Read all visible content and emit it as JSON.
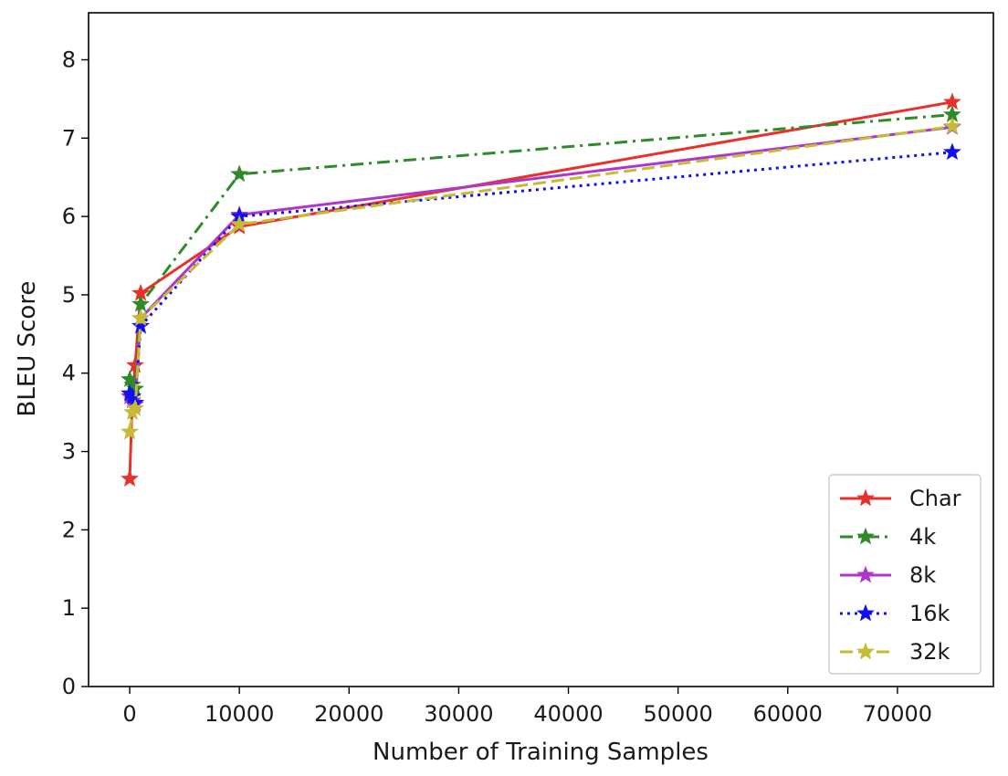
{
  "chart_data": {
    "type": "line",
    "title": "",
    "xlabel": "Number of Training Samples",
    "ylabel": "BLEU Score",
    "xlim": [
      -3750,
      78750
    ],
    "ylim": [
      0,
      8.6
    ],
    "xticks": [
      0,
      10000,
      20000,
      30000,
      40000,
      50000,
      60000,
      70000
    ],
    "yticks": [
      0,
      1,
      2,
      3,
      4,
      5,
      6,
      7,
      8
    ],
    "grid": false,
    "legend_position": "lower-right",
    "series": [
      {
        "name": "Char",
        "color": "#e8312b",
        "dash": "solid",
        "marker": "star",
        "points": [
          [
            0,
            2.65
          ],
          [
            250,
            3.7
          ],
          [
            500,
            4.1
          ],
          [
            1000,
            5.02
          ],
          [
            10000,
            5.87
          ],
          [
            75000,
            7.46
          ]
        ]
      },
      {
        "name": "4k",
        "color": "#2f8a2a",
        "dash": "dashdot",
        "marker": "star",
        "points": [
          [
            0,
            3.92
          ],
          [
            250,
            3.85
          ],
          [
            500,
            3.8
          ],
          [
            1000,
            4.88
          ],
          [
            10000,
            6.54
          ],
          [
            75000,
            7.3
          ]
        ]
      },
      {
        "name": "8k",
        "color": "#b035c9",
        "dash": "solid",
        "marker": "star",
        "points": [
          [
            0,
            3.7
          ],
          [
            250,
            3.65
          ],
          [
            500,
            3.6
          ],
          [
            1000,
            4.7
          ],
          [
            10000,
            6.02
          ],
          [
            75000,
            7.14
          ]
        ]
      },
      {
        "name": "16k",
        "color": "#1010ee",
        "dash": "dotted",
        "marker": "star",
        "points": [
          [
            0,
            3.74
          ],
          [
            250,
            3.7
          ],
          [
            500,
            3.62
          ],
          [
            1000,
            4.6
          ],
          [
            10000,
            6.0
          ],
          [
            75000,
            6.82
          ]
        ]
      },
      {
        "name": "32k",
        "color": "#c4bb36",
        "dash": "dashed",
        "marker": "star",
        "points": [
          [
            0,
            3.25
          ],
          [
            250,
            3.5
          ],
          [
            500,
            3.55
          ],
          [
            1000,
            4.7
          ],
          [
            10000,
            5.9
          ],
          [
            75000,
            7.15
          ]
        ]
      }
    ]
  }
}
